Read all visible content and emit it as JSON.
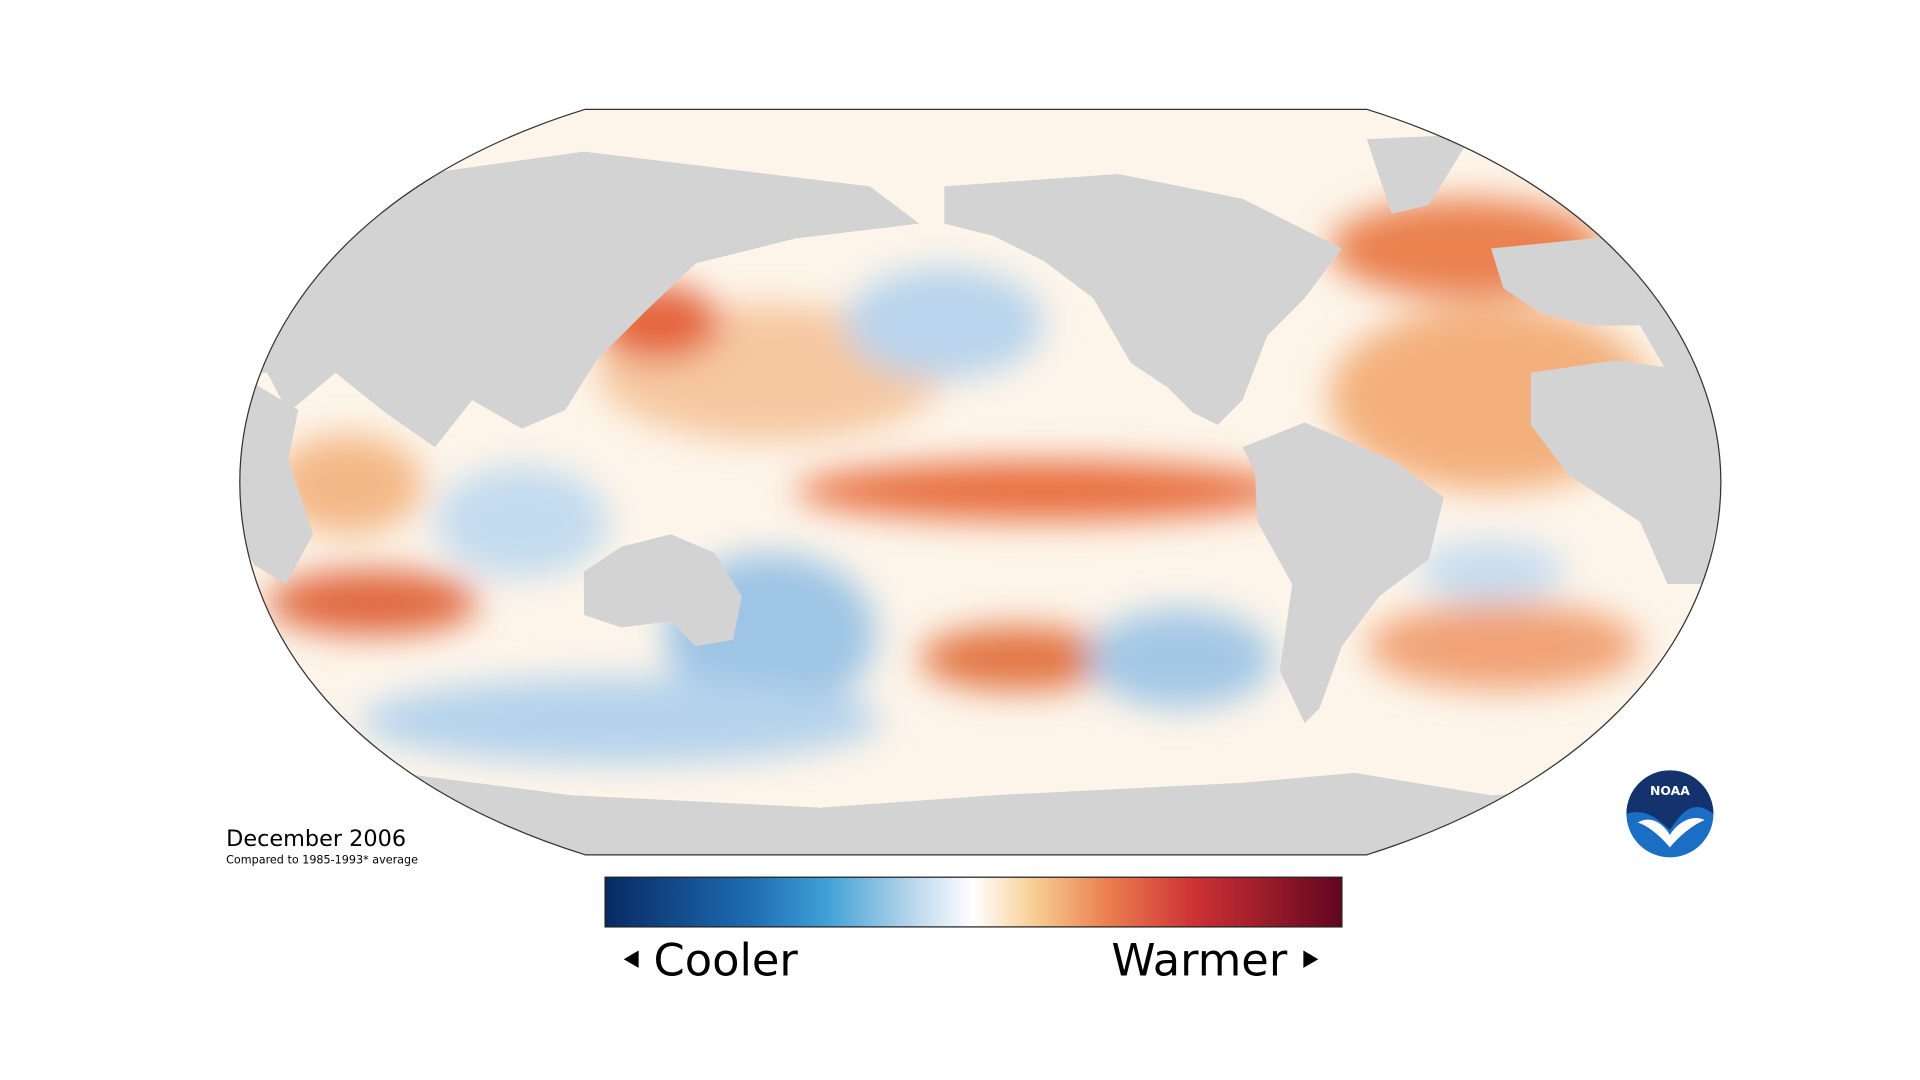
{
  "map": {
    "date": "December 2006",
    "comparison": "Compared to 1985-1993* average"
  },
  "legend": {
    "low": "Cooler",
    "high": "Warmer"
  },
  "logo": "NOAA"
}
